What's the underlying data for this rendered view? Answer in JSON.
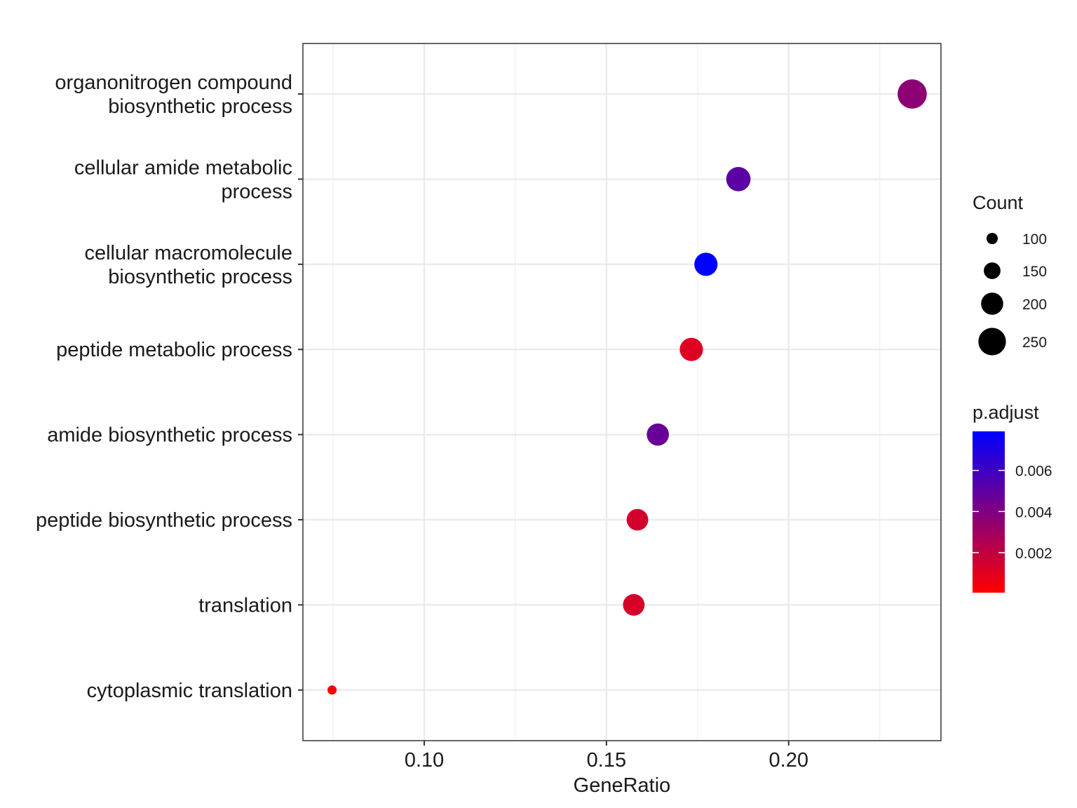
{
  "chart_data": {
    "type": "scatter",
    "xlabel": "GeneRatio",
    "ylabel": "",
    "title": "",
    "xlim": [
      0.0667,
      0.2418
    ],
    "x_ticks": [
      "0.10",
      "0.15",
      "0.20"
    ],
    "x_tick_values": [
      0.1,
      0.15,
      0.2
    ],
    "grid": true,
    "legend_position": "right",
    "categories": [
      [
        "organonitrogen compound",
        "biosynthetic process"
      ],
      [
        "cellular amide metabolic",
        "process"
      ],
      [
        "cellular macromolecule",
        "biosynthetic process"
      ],
      [
        "peptide metabolic process"
      ],
      [
        "amide biosynthetic process"
      ],
      [
        "peptide biosynthetic process"
      ],
      [
        "translation"
      ],
      [
        "cytoplasmic translation"
      ]
    ],
    "points": [
      {
        "x": 0.2339,
        "count": 265,
        "p_adjust": 0.0036
      },
      {
        "x": 0.1862,
        "count": 220,
        "p_adjust": 0.0051
      },
      {
        "x": 0.1773,
        "count": 210,
        "p_adjust": 0.0079
      },
      {
        "x": 0.1733,
        "count": 210,
        "p_adjust": 0.0011
      },
      {
        "x": 0.1641,
        "count": 200,
        "p_adjust": 0.0047
      },
      {
        "x": 0.1585,
        "count": 195,
        "p_adjust": 0.0014
      },
      {
        "x": 0.1575,
        "count": 195,
        "p_adjust": 0.0013
      },
      {
        "x": 0.0747,
        "count": 80,
        "p_adjust": 0.0001
      }
    ],
    "size_legend": {
      "title": "Count",
      "values": [
        100,
        150,
        200,
        250
      ],
      "labels": [
        "100",
        "150",
        "200",
        "250"
      ]
    },
    "color_legend": {
      "title": "p.adjust",
      "range": [
        5e-05,
        0.0079
      ],
      "ticks": [
        0.002,
        0.004,
        0.006
      ],
      "labels": [
        "0.002",
        "0.004",
        "0.006"
      ],
      "low_color": "#ff0000",
      "high_color": "#0000ff"
    },
    "colors": {
      "grid_major": "#ebebeb",
      "grid_minor": "#f2f2f2",
      "panel_border": "#333333"
    }
  }
}
